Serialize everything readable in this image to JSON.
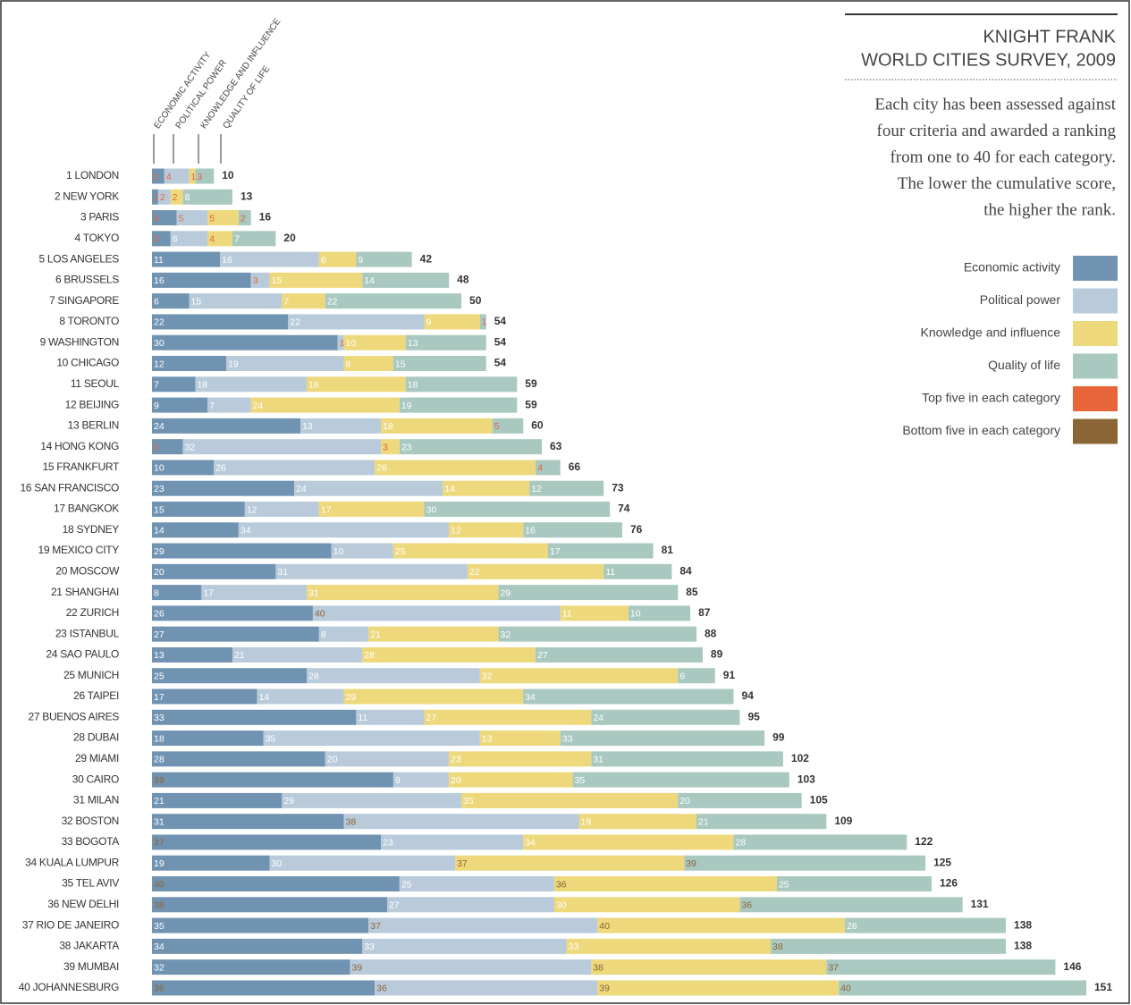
{
  "chart_data": {
    "type": "stacked-bar",
    "title": [
      "KNIGHT FRANK",
      "WORLD CITIES SURVEY, 2009"
    ],
    "description": [
      "Each city has been assessed against",
      "four criteria and awarded a ranking",
      "from one to 40 for each category.",
      "The lower the cumulative score,",
      "the higher the rank."
    ],
    "column_headers": [
      "ECONOMIC ACTIVITY",
      "POLITICAL POWER",
      "KNOWLEDGE AND INFLUENCE",
      "QUALITY OF LIFE"
    ],
    "categories": [
      "1 LONDON",
      "2 NEW YORK",
      "3 PARIS",
      "4 TOKYO",
      "5 LOS ANGELES",
      "6 BRUSSELS",
      "7 SINGAPORE",
      "8 TORONTO",
      "9 WASHINGTON",
      "10 CHICAGO",
      "11 SEOUL",
      "12 BEIJING",
      "13 BERLIN",
      "14 HONG KONG",
      "15 FRANKFURT",
      "16 SAN FRANCISCO",
      "17 BANGKOK",
      "18 SYDNEY",
      "19 MEXICO CITY",
      "20 MOSCOW",
      "21 SHANGHAI",
      "22 ZURICH",
      "23 ISTANBUL",
      "24 SAO PAULO",
      "25 MUNICH",
      "26 TAIPEI",
      "27 BUENOS AIRES",
      "28 DUBAI",
      "29 MIAMI",
      "30 CAIRO",
      "31 MILAN",
      "32 BOSTON",
      "33 BOGOTA",
      "34 KUALA LUMPUR",
      "35 TEL AVIV",
      "36 NEW DELHI",
      "37 RIO DE JANEIRO",
      "38 JAKARTA",
      "39 MUMBAI",
      "40 JOHANNESBURG"
    ],
    "series": [
      {
        "name": "Economic activity",
        "color": "#7193b2",
        "values": [
          2,
          1,
          4,
          3,
          11,
          16,
          6,
          22,
          30,
          12,
          7,
          9,
          24,
          5,
          10,
          23,
          15,
          14,
          29,
          20,
          8,
          26,
          27,
          13,
          25,
          17,
          33,
          18,
          28,
          39,
          21,
          31,
          37,
          19,
          40,
          38,
          35,
          34,
          32,
          36
        ]
      },
      {
        "name": "Political power",
        "color": "#b9cbdb",
        "values": [
          4,
          2,
          5,
          6,
          16,
          3,
          15,
          22,
          1,
          19,
          18,
          7,
          13,
          32,
          26,
          24,
          12,
          34,
          10,
          31,
          17,
          40,
          8,
          21,
          28,
          14,
          11,
          35,
          20,
          9,
          29,
          38,
          23,
          30,
          25,
          27,
          37,
          33,
          39,
          36
        ]
      },
      {
        "name": "Knowledge and influence",
        "color": "#eed87c",
        "values": [
          1,
          2,
          5,
          4,
          6,
          15,
          7,
          9,
          10,
          8,
          16,
          24,
          18,
          3,
          26,
          14,
          17,
          12,
          25,
          22,
          31,
          11,
          21,
          28,
          32,
          29,
          27,
          13,
          23,
          20,
          35,
          19,
          34,
          37,
          36,
          30,
          40,
          33,
          38,
          39
        ]
      },
      {
        "name": "Quality of life",
        "color": "#a9c8c0",
        "values": [
          3,
          8,
          2,
          7,
          9,
          14,
          22,
          1,
          13,
          15,
          18,
          19,
          5,
          23,
          4,
          12,
          30,
          16,
          17,
          11,
          29,
          10,
          32,
          27,
          6,
          34,
          24,
          33,
          31,
          35,
          20,
          21,
          28,
          39,
          25,
          36,
          26,
          38,
          37,
          40
        ]
      }
    ],
    "totals": [
      10,
      13,
      16,
      20,
      42,
      48,
      50,
      54,
      54,
      54,
      59,
      59,
      60,
      63,
      66,
      73,
      74,
      76,
      81,
      84,
      85,
      87,
      88,
      89,
      91,
      94,
      95,
      99,
      102,
      103,
      105,
      109,
      122,
      125,
      126,
      131,
      138,
      138,
      146,
      151
    ],
    "highlights": [
      {
        "name": "Top five in each category",
        "color": "#e8643a"
      },
      {
        "name": "Bottom five in each category",
        "color": "#8a6536"
      }
    ]
  }
}
